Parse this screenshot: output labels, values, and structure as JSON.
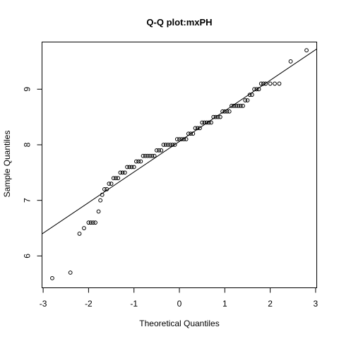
{
  "chart_data": {
    "type": "scatter",
    "title": "Q-Q plot:mxPH",
    "xlabel": "Theoretical Quantiles",
    "ylabel": "Sample Quantiles",
    "xlim": [
      -3.0,
      3.0
    ],
    "ylim": [
      5.5,
      9.8
    ],
    "x_ticks": [
      -3,
      -2,
      -1,
      0,
      1,
      2,
      3
    ],
    "y_ticks": [
      6,
      7,
      8,
      9
    ],
    "grid": false,
    "reference_line": {
      "intercept": 8.06,
      "slope": 0.55
    },
    "series": [
      {
        "x": [
          -2.8,
          -2.4,
          -2.2,
          -2.1,
          -2.0,
          -1.95,
          -1.9,
          -1.85,
          -1.78,
          -1.74,
          -1.7,
          -1.65,
          -1.6,
          -1.55,
          -1.5,
          -1.45,
          -1.4,
          -1.35,
          -1.3,
          -1.25,
          -1.2,
          -1.15,
          -1.1,
          -1.05,
          -1.0,
          -0.95,
          -0.9,
          -0.85,
          -0.8,
          -0.75,
          -0.7,
          -0.65,
          -0.6,
          -0.55,
          -0.5,
          -0.45,
          -0.4,
          -0.35,
          -0.3,
          -0.25,
          -0.2,
          -0.15,
          -0.1,
          -0.05,
          0.0,
          0.05,
          0.1,
          0.15,
          0.2,
          0.25,
          0.3,
          0.35,
          0.4,
          0.45,
          0.5,
          0.55,
          0.6,
          0.65,
          0.7,
          0.75,
          0.8,
          0.85,
          0.9,
          0.95,
          1.0,
          1.05,
          1.1,
          1.15,
          1.2,
          1.25,
          1.3,
          1.35,
          1.4,
          1.45,
          1.5,
          1.55,
          1.6,
          1.65,
          1.7,
          1.75,
          1.8,
          1.85,
          1.9,
          2.0,
          2.1,
          2.2,
          2.45,
          2.8
        ],
        "y": [
          5.6,
          5.7,
          6.4,
          6.5,
          6.6,
          6.6,
          6.6,
          6.6,
          6.8,
          7.0,
          7.1,
          7.2,
          7.2,
          7.3,
          7.3,
          7.4,
          7.4,
          7.4,
          7.5,
          7.5,
          7.5,
          7.6,
          7.6,
          7.6,
          7.6,
          7.7,
          7.7,
          7.7,
          7.8,
          7.8,
          7.8,
          7.8,
          7.8,
          7.8,
          7.9,
          7.9,
          7.9,
          8.0,
          8.0,
          8.0,
          8.0,
          8.0,
          8.0,
          8.1,
          8.1,
          8.1,
          8.1,
          8.1,
          8.2,
          8.2,
          8.2,
          8.3,
          8.3,
          8.3,
          8.4,
          8.4,
          8.4,
          8.4,
          8.4,
          8.5,
          8.5,
          8.5,
          8.5,
          8.6,
          8.6,
          8.6,
          8.6,
          8.7,
          8.7,
          8.7,
          8.7,
          8.7,
          8.7,
          8.8,
          8.8,
          8.9,
          8.9,
          9.0,
          9.0,
          9.0,
          9.1,
          9.1,
          9.1,
          9.1,
          9.1,
          9.1,
          9.5,
          9.7
        ]
      }
    ]
  }
}
